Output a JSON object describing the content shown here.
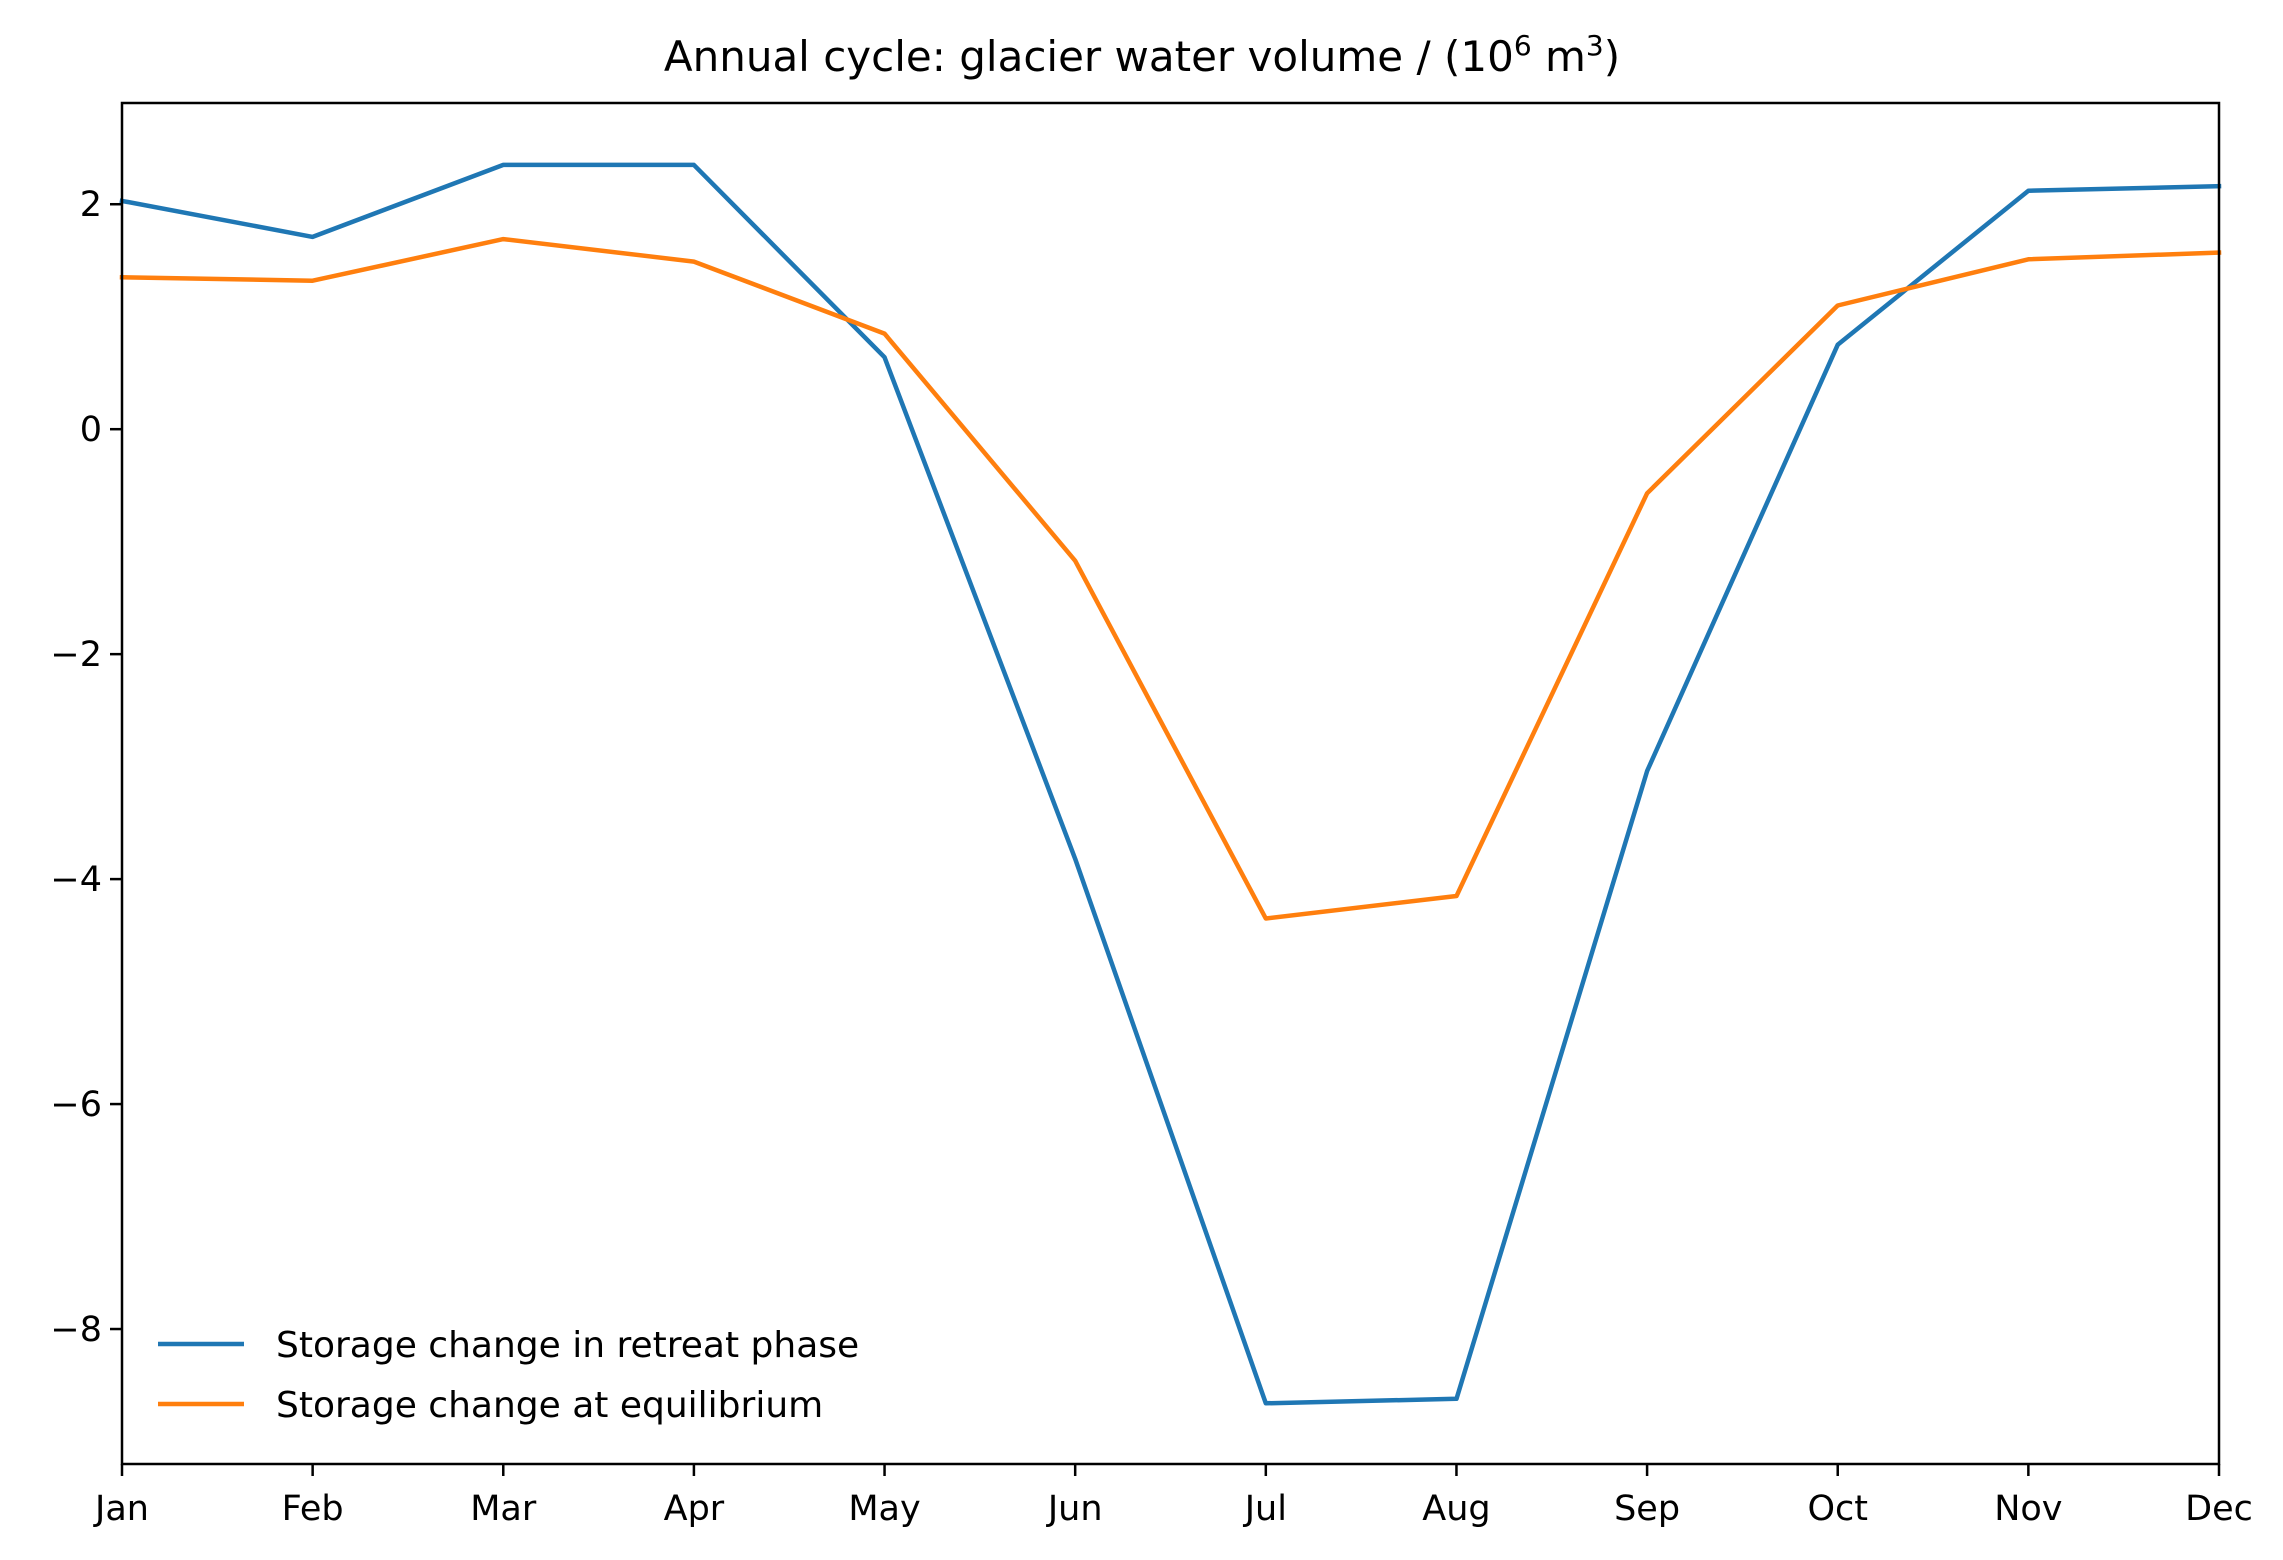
{
  "chart_data": {
    "type": "line",
    "title": {
      "prefix": "Annual cycle: glacier water volume / (10",
      "sup1": "6",
      "middle": " m",
      "sup2": "3",
      "suffix": ")"
    },
    "xlabel": "",
    "ylabel": "",
    "categories": [
      "Jan",
      "Feb",
      "Mar",
      "Apr",
      "May",
      "Jun",
      "Jul",
      "Aug",
      "Sep",
      "Oct",
      "Nov",
      "Dec"
    ],
    "ylim": [
      -9.2,
      2.9
    ],
    "yticks": [
      2,
      0,
      -2,
      -4,
      -6,
      -8
    ],
    "ytick_labels": [
      "2",
      "0",
      "−2",
      "−4",
      "−6",
      "−8"
    ],
    "grid": false,
    "legend_position": "lower-left",
    "series": [
      {
        "name": "Storage change in retreat phase",
        "color": "#1f77b4",
        "values": [
          2.03,
          1.71,
          2.35,
          2.35,
          0.64,
          -3.82,
          -8.66,
          -8.62,
          -3.04,
          0.75,
          2.12,
          2.16
        ]
      },
      {
        "name": "Storage change at equilibrium",
        "color": "#ff7f0e",
        "values": [
          1.35,
          1.32,
          1.69,
          1.49,
          0.85,
          -1.17,
          -4.35,
          -4.15,
          -0.57,
          1.1,
          1.51,
          1.57
        ]
      }
    ]
  }
}
